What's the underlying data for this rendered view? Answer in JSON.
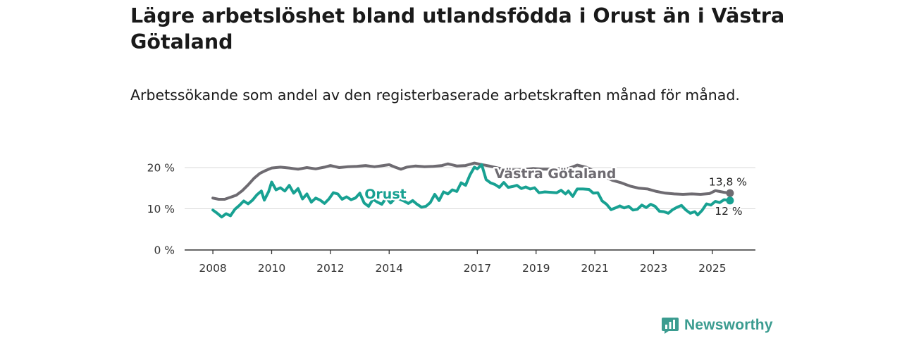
{
  "title": "Lägre arbetslöshet bland utlandsfödda i Orust än i Västra Götaland",
  "subtitle": "Arbetssökande som andel av den registerbaserade arbetskraften månad för månad.",
  "brand": {
    "name": "Newsworthy",
    "color": "#3b9c90"
  },
  "chart_data": {
    "type": "line",
    "title": "Lägre arbetslöshet bland utlandsfödda i Orust än i Västra Götaland",
    "xlabel": "",
    "ylabel": "",
    "xlim": [
      2007.95,
      2025.65
    ],
    "ylim": [
      0,
      20
    ],
    "yticks": [
      0,
      10,
      20
    ],
    "ytick_labels": [
      "0 %",
      "10 %",
      "20 %"
    ],
    "xticks": [
      2008,
      2010,
      2012,
      2014,
      2017,
      2019,
      2021,
      2023,
      2025
    ],
    "grid": true,
    "legend": "direct labels",
    "series": [
      {
        "name": "Västra Götaland",
        "color": "#6e6b71",
        "end_label": "13,8 %",
        "points": [
          [
            2008.0,
            12.6
          ],
          [
            2008.2,
            12.3
          ],
          [
            2008.4,
            12.3
          ],
          [
            2008.6,
            12.8
          ],
          [
            2008.8,
            13.3
          ],
          [
            2009.0,
            14.4
          ],
          [
            2009.2,
            15.8
          ],
          [
            2009.4,
            17.4
          ],
          [
            2009.6,
            18.6
          ],
          [
            2009.8,
            19.3
          ],
          [
            2010.0,
            19.9
          ],
          [
            2010.3,
            20.1
          ],
          [
            2010.6,
            19.9
          ],
          [
            2010.9,
            19.6
          ],
          [
            2011.2,
            20.0
          ],
          [
            2011.5,
            19.7
          ],
          [
            2011.8,
            20.1
          ],
          [
            2012.0,
            20.5
          ],
          [
            2012.3,
            20.0
          ],
          [
            2012.6,
            20.2
          ],
          [
            2012.9,
            20.3
          ],
          [
            2013.2,
            20.5
          ],
          [
            2013.5,
            20.2
          ],
          [
            2013.8,
            20.5
          ],
          [
            2014.0,
            20.7
          ],
          [
            2014.2,
            20.1
          ],
          [
            2014.4,
            19.6
          ],
          [
            2014.6,
            20.1
          ],
          [
            2014.9,
            20.4
          ],
          [
            2015.2,
            20.2
          ],
          [
            2015.5,
            20.3
          ],
          [
            2015.8,
            20.5
          ],
          [
            2016.0,
            20.9
          ],
          [
            2016.3,
            20.4
          ],
          [
            2016.6,
            20.5
          ],
          [
            2016.9,
            21.1
          ],
          [
            2017.1,
            20.8
          ],
          [
            2017.4,
            20.4
          ],
          [
            2017.7,
            19.9
          ],
          [
            2018.0,
            19.6
          ],
          [
            2018.3,
            19.4
          ],
          [
            2018.6,
            19.5
          ],
          [
            2018.9,
            19.8
          ],
          [
            2019.2,
            19.6
          ],
          [
            2019.5,
            19.6
          ],
          [
            2019.8,
            19.8
          ],
          [
            2020.1,
            19.8
          ],
          [
            2020.4,
            20.6
          ],
          [
            2020.7,
            20.1
          ],
          [
            2021.0,
            19.1
          ],
          [
            2021.3,
            17.9
          ],
          [
            2021.6,
            16.9
          ],
          [
            2021.9,
            16.3
          ],
          [
            2022.2,
            15.5
          ],
          [
            2022.5,
            15.0
          ],
          [
            2022.8,
            14.8
          ],
          [
            2023.1,
            14.2
          ],
          [
            2023.4,
            13.8
          ],
          [
            2023.7,
            13.6
          ],
          [
            2024.0,
            13.5
          ],
          [
            2024.3,
            13.6
          ],
          [
            2024.6,
            13.5
          ],
          [
            2024.9,
            13.7
          ],
          [
            2025.1,
            14.4
          ],
          [
            2025.4,
            14.0
          ],
          [
            2025.6,
            13.8
          ]
        ]
      },
      {
        "name": "Orust",
        "color": "#18a192",
        "end_label": "12 %",
        "points": [
          [
            2008.0,
            9.7
          ],
          [
            2008.15,
            8.9
          ],
          [
            2008.3,
            8.0
          ],
          [
            2008.45,
            8.8
          ],
          [
            2008.6,
            8.3
          ],
          [
            2008.75,
            9.9
          ],
          [
            2008.9,
            10.8
          ],
          [
            2009.05,
            11.9
          ],
          [
            2009.2,
            11.2
          ],
          [
            2009.35,
            12.1
          ],
          [
            2009.5,
            13.4
          ],
          [
            2009.65,
            14.3
          ],
          [
            2009.75,
            12.1
          ],
          [
            2009.9,
            14.2
          ],
          [
            2010.0,
            16.5
          ],
          [
            2010.15,
            14.6
          ],
          [
            2010.3,
            15.1
          ],
          [
            2010.45,
            14.3
          ],
          [
            2010.6,
            15.7
          ],
          [
            2010.75,
            13.8
          ],
          [
            2010.9,
            14.9
          ],
          [
            2011.05,
            12.4
          ],
          [
            2011.2,
            13.6
          ],
          [
            2011.35,
            11.6
          ],
          [
            2011.5,
            12.6
          ],
          [
            2011.65,
            12.1
          ],
          [
            2011.8,
            11.3
          ],
          [
            2011.95,
            12.4
          ],
          [
            2012.1,
            13.9
          ],
          [
            2012.25,
            13.6
          ],
          [
            2012.4,
            12.3
          ],
          [
            2012.55,
            12.9
          ],
          [
            2012.7,
            12.2
          ],
          [
            2012.85,
            12.6
          ],
          [
            2013.0,
            13.8
          ],
          [
            2013.15,
            11.4
          ],
          [
            2013.3,
            10.6
          ],
          [
            2013.45,
            12.3
          ],
          [
            2013.6,
            11.6
          ],
          [
            2013.75,
            11.1
          ],
          [
            2013.9,
            12.7
          ],
          [
            2014.05,
            11.4
          ],
          [
            2014.2,
            12.5
          ],
          [
            2014.35,
            12.4
          ],
          [
            2014.5,
            11.9
          ],
          [
            2014.65,
            11.3
          ],
          [
            2014.8,
            12.0
          ],
          [
            2014.95,
            11.1
          ],
          [
            2015.1,
            10.4
          ],
          [
            2015.25,
            10.6
          ],
          [
            2015.4,
            11.5
          ],
          [
            2015.55,
            13.5
          ],
          [
            2015.7,
            12.0
          ],
          [
            2015.85,
            14.1
          ],
          [
            2016.0,
            13.6
          ],
          [
            2016.15,
            14.6
          ],
          [
            2016.3,
            14.2
          ],
          [
            2016.45,
            16.3
          ],
          [
            2016.6,
            15.7
          ],
          [
            2016.75,
            18.2
          ],
          [
            2016.9,
            20.1
          ],
          [
            2017.0,
            19.7
          ],
          [
            2017.15,
            20.7
          ],
          [
            2017.3,
            17.1
          ],
          [
            2017.45,
            16.3
          ],
          [
            2017.6,
            15.9
          ],
          [
            2017.75,
            15.2
          ],
          [
            2017.9,
            16.4
          ],
          [
            2018.05,
            15.2
          ],
          [
            2018.2,
            15.4
          ],
          [
            2018.35,
            15.7
          ],
          [
            2018.5,
            14.9
          ],
          [
            2018.65,
            15.3
          ],
          [
            2018.8,
            14.8
          ],
          [
            2018.95,
            15.1
          ],
          [
            2019.1,
            13.9
          ],
          [
            2019.3,
            14.1
          ],
          [
            2019.5,
            14.0
          ],
          [
            2019.7,
            13.9
          ],
          [
            2019.85,
            14.5
          ],
          [
            2020.0,
            13.6
          ],
          [
            2020.1,
            14.3
          ],
          [
            2020.25,
            13.0
          ],
          [
            2020.4,
            14.8
          ],
          [
            2020.6,
            14.8
          ],
          [
            2020.8,
            14.7
          ],
          [
            2020.95,
            13.8
          ],
          [
            2021.1,
            13.9
          ],
          [
            2021.25,
            11.9
          ],
          [
            2021.4,
            11.1
          ],
          [
            2021.55,
            9.8
          ],
          [
            2021.7,
            10.2
          ],
          [
            2021.85,
            10.7
          ],
          [
            2022.0,
            10.2
          ],
          [
            2022.15,
            10.6
          ],
          [
            2022.3,
            9.7
          ],
          [
            2022.45,
            9.9
          ],
          [
            2022.6,
            10.9
          ],
          [
            2022.75,
            10.3
          ],
          [
            2022.9,
            11.1
          ],
          [
            2023.05,
            10.6
          ],
          [
            2023.2,
            9.4
          ],
          [
            2023.35,
            9.3
          ],
          [
            2023.5,
            8.9
          ],
          [
            2023.65,
            9.8
          ],
          [
            2023.8,
            10.4
          ],
          [
            2023.95,
            10.8
          ],
          [
            2024.1,
            9.7
          ],
          [
            2024.25,
            8.9
          ],
          [
            2024.4,
            9.3
          ],
          [
            2024.5,
            8.5
          ],
          [
            2024.65,
            9.6
          ],
          [
            2024.8,
            11.2
          ],
          [
            2024.95,
            10.9
          ],
          [
            2025.1,
            11.8
          ],
          [
            2025.25,
            11.5
          ],
          [
            2025.4,
            12.2
          ],
          [
            2025.6,
            12.0
          ]
        ]
      }
    ]
  }
}
